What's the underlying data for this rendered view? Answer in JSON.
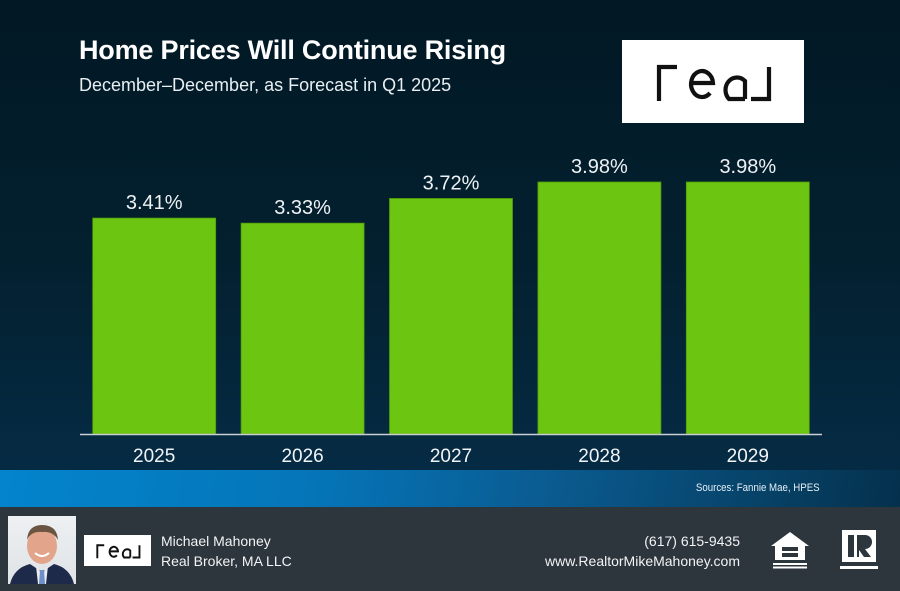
{
  "header": {
    "title": "Home Prices Will Continue Rising",
    "subtitle": "December–December, as Forecast in Q1 2025",
    "logo_text": "real"
  },
  "chart_data": {
    "type": "bar",
    "title": "Home Prices Will Continue Rising",
    "subtitle": "December–December, as Forecast in Q1 2025",
    "xlabel": "",
    "ylabel": "",
    "categories": [
      "2025",
      "2026",
      "2027",
      "2028",
      "2029"
    ],
    "values": [
      3.41,
      3.33,
      3.72,
      3.98,
      3.98
    ],
    "data_labels": [
      "3.41%",
      "3.33%",
      "3.72%",
      "3.98%",
      "3.98%"
    ],
    "unit": "%",
    "ylim": [
      0,
      4.1
    ],
    "grid": false,
    "legend": "none",
    "bar_color": "#6cc611"
  },
  "sources": "Sources: Fannie Mae, HPES",
  "footer": {
    "agent_name": "Michael Mahoney",
    "agent_company": "Real Broker, MA LLC",
    "phone": "(617) 615-9435",
    "website": "www.RealtorMikeMahoney.com",
    "logo_text": "real",
    "badges": [
      {
        "icon": "equal-housing-opportunity-icon",
        "label": "EQUAL HOUSING OPPORTUNITY"
      },
      {
        "icon": "realtor-icon",
        "label": "REALTOR"
      }
    ]
  },
  "colors": {
    "background": "#021824",
    "bar": "#6cc611",
    "band": "#0384cd",
    "footer": "#2d353d"
  }
}
